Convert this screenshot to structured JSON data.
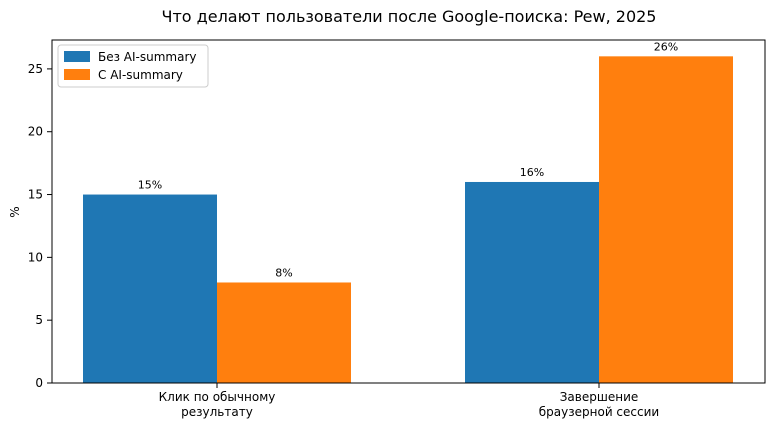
{
  "chart_data": {
    "type": "bar",
    "title": "Что делают пользователи после Google-поиска: Pew, 2025",
    "xlabel": "",
    "ylabel": "%",
    "ylim": [
      0,
      27.3
    ],
    "yticks": [
      0,
      5,
      10,
      15,
      20,
      25
    ],
    "grid": false,
    "legend_position": "top-left",
    "categories": [
      [
        "Клик по обычному",
        "результату"
      ],
      [
        "Завершение",
        "браузерной сессии"
      ]
    ],
    "series": [
      {
        "name": "Без AI-summary",
        "color": "#1f77b4",
        "values": [
          15,
          16
        ],
        "labels": [
          "15%",
          "16%"
        ]
      },
      {
        "name": "С AI-summary",
        "color": "#ff7f0e",
        "values": [
          8,
          26
        ],
        "labels": [
          "8%",
          "26%"
        ]
      }
    ]
  }
}
